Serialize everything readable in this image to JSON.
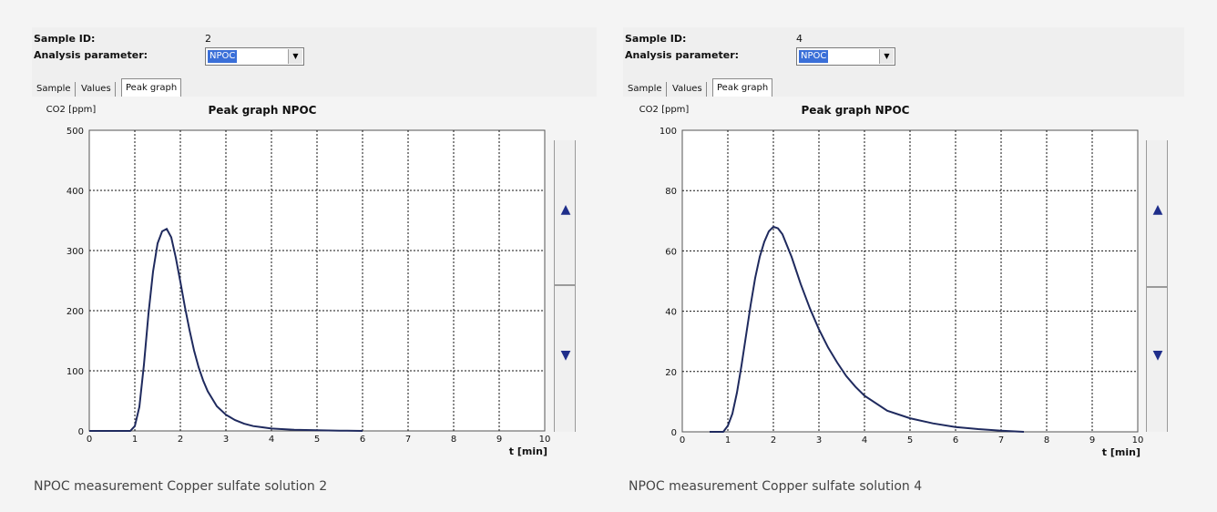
{
  "panels": [
    {
      "sample_id_label": "Sample ID:",
      "sample_id": "2",
      "analysis_parameter_label": "Analysis parameter:",
      "analysis_parameter": "NPOC",
      "tabs": [
        "Sample",
        "Values",
        "Peak graph"
      ],
      "active_tab": "Peak graph",
      "caption": "NPOC measurement Copper sulfate solution 2"
    },
    {
      "sample_id_label": "Sample ID:",
      "sample_id": "4",
      "analysis_parameter_label": "Analysis parameter:",
      "analysis_parameter": "NPOC",
      "tabs": [
        "Sample",
        "Values",
        "Peak graph"
      ],
      "active_tab": "Peak graph",
      "caption": "NPOC measurement Copper sulfate solution 4"
    }
  ],
  "icons": {
    "scroll_up": "up-arrow-icon",
    "scroll_down": "down-arrow-icon",
    "dropdown": "chevron-down-icon"
  },
  "colors": {
    "curve": "#1f2a5e",
    "selection": "#3a6fd8",
    "grid": "#111111"
  },
  "chart_data": [
    {
      "type": "line",
      "title": "Peak graph NPOC",
      "ylabel": "CO2 [ppm]",
      "xlabel": "t [min]",
      "xlim": [
        0,
        10
      ],
      "ylim": [
        0,
        500
      ],
      "xticks": [
        "0",
        "1",
        "2",
        "3",
        "4",
        "5",
        "6",
        "7",
        "8",
        "9",
        "10"
      ],
      "yticks": [
        "0",
        "100",
        "200",
        "300",
        "400",
        "500"
      ],
      "grid": true,
      "series": [
        {
          "x": [
            0,
            0.9,
            1.0,
            1.1,
            1.2,
            1.3,
            1.4,
            1.5,
            1.6,
            1.7,
            1.8,
            1.9,
            2.0,
            2.1,
            2.2,
            2.3,
            2.4,
            2.5,
            2.6,
            2.8,
            3.0,
            3.2,
            3.4,
            3.6,
            3.8,
            4.0,
            4.5,
            5.0,
            5.5,
            6.0
          ],
          "y": [
            0,
            0,
            8,
            40,
            110,
            195,
            265,
            312,
            332,
            336,
            322,
            288,
            248,
            206,
            168,
            134,
            106,
            84,
            66,
            41,
            27,
            18,
            12,
            8,
            6,
            4,
            2,
            1,
            0.5,
            0
          ]
        }
      ]
    },
    {
      "type": "line",
      "title": "Peak graph NPOC",
      "ylabel": "CO2 [ppm]",
      "xlabel": "t [min]",
      "xlim": [
        0,
        10
      ],
      "ylim": [
        0,
        100
      ],
      "xticks": [
        "0",
        "1",
        "2",
        "3",
        "4",
        "5",
        "6",
        "7",
        "8",
        "9",
        "10"
      ],
      "yticks": [
        "0",
        "20",
        "40",
        "60",
        "80",
        "100"
      ],
      "grid": true,
      "series": [
        {
          "x": [
            0.6,
            0.9,
            1.0,
            1.1,
            1.2,
            1.3,
            1.4,
            1.5,
            1.6,
            1.7,
            1.8,
            1.9,
            2.0,
            2.1,
            2.2,
            2.4,
            2.6,
            2.8,
            3.0,
            3.2,
            3.4,
            3.6,
            3.8,
            4.0,
            4.5,
            5.0,
            5.5,
            6.0,
            6.5,
            7.0,
            7.5
          ],
          "y": [
            0,
            0,
            2,
            6,
            13,
            22,
            32,
            42,
            51,
            58,
            63,
            66.5,
            68,
            67.5,
            65.5,
            58,
            49,
            41,
            34,
            28,
            23,
            18.5,
            15,
            12,
            7,
            4.5,
            2.8,
            1.6,
            0.9,
            0.4,
            0
          ]
        }
      ]
    }
  ]
}
